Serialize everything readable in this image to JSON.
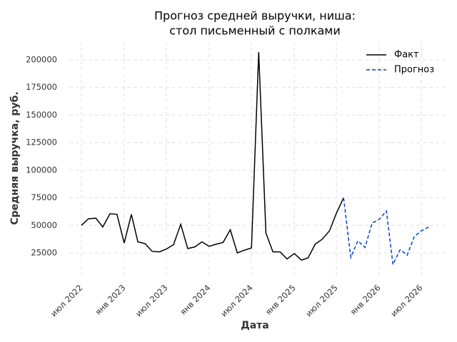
{
  "chart_data": {
    "type": "line",
    "title": [
      "Прогноз средней выручки, ниша:",
      "стол письменный с полками"
    ],
    "x_label": "Дата",
    "y_label": "Средняя выручка, руб.",
    "x": [
      "2022-07",
      "2022-08",
      "2022-09",
      "2022-10",
      "2022-11",
      "2022-12",
      "2023-01",
      "2023-02",
      "2023-03",
      "2023-04",
      "2023-05",
      "2023-06",
      "2023-07",
      "2023-08",
      "2023-09",
      "2023-10",
      "2023-11",
      "2023-12",
      "2024-01",
      "2024-02",
      "2024-03",
      "2024-04",
      "2024-05",
      "2024-06",
      "2024-07",
      "2024-08",
      "2024-09",
      "2024-10",
      "2024-11",
      "2024-12",
      "2025-01",
      "2025-02",
      "2025-03",
      "2025-04",
      "2025-05",
      "2025-06",
      "2025-07",
      "2025-08",
      "2025-09",
      "2025-10",
      "2025-11",
      "2025-12",
      "2026-01",
      "2026-02",
      "2026-03",
      "2026-04",
      "2026-05",
      "2026-06",
      "2026-07",
      "2026-08"
    ],
    "series": [
      {
        "name": "Факт",
        "color": "#000000",
        "dash": false,
        "values": [
          50000,
          56000,
          56500,
          48500,
          60500,
          60000,
          34000,
          60000,
          35000,
          33500,
          26500,
          26000,
          28500,
          32500,
          51000,
          29000,
          30500,
          35000,
          31000,
          33000,
          34500,
          46000,
          25000,
          27500,
          29500,
          207000,
          43000,
          26000,
          26000,
          19500,
          24500,
          18500,
          20500,
          33000,
          37500,
          45000,
          61000,
          75000,
          null,
          null,
          null,
          null,
          null,
          null,
          null,
          null,
          null,
          null,
          null,
          null
        ]
      },
      {
        "name": "Прогноз",
        "color": "#0043ce",
        "dash": true,
        "values": [
          null,
          null,
          null,
          null,
          null,
          null,
          null,
          null,
          null,
          null,
          null,
          null,
          null,
          null,
          null,
          null,
          null,
          null,
          null,
          null,
          null,
          null,
          null,
          null,
          null,
          null,
          null,
          null,
          null,
          null,
          null,
          null,
          null,
          null,
          null,
          null,
          null,
          75000,
          21000,
          36000,
          30000,
          52000,
          55500,
          63000,
          14500,
          28000,
          23000,
          40000,
          45000,
          48500
        ]
      }
    ],
    "xlim": [
      "2022-05-10",
      "2026-10-10"
    ],
    "xticks": [
      {
        "value": "2022-07",
        "label": "июл 2022"
      },
      {
        "value": "2023-01",
        "label": "янв 2023"
      },
      {
        "value": "2023-07",
        "label": "июл 2023"
      },
      {
        "value": "2024-01",
        "label": "янв 2024"
      },
      {
        "value": "2024-07",
        "label": "июл 2024"
      },
      {
        "value": "2025-01",
        "label": "янв 2025"
      },
      {
        "value": "2025-07",
        "label": "июл 2025"
      },
      {
        "value": "2026-01",
        "label": "янв 2026"
      },
      {
        "value": "2026-07",
        "label": "июл 2026"
      }
    ],
    "ylim": [
      3700,
      216800
    ],
    "yticks": [
      25000,
      50000,
      75000,
      100000,
      125000,
      150000,
      175000,
      200000
    ],
    "grid": true,
    "legend": "upper right"
  }
}
